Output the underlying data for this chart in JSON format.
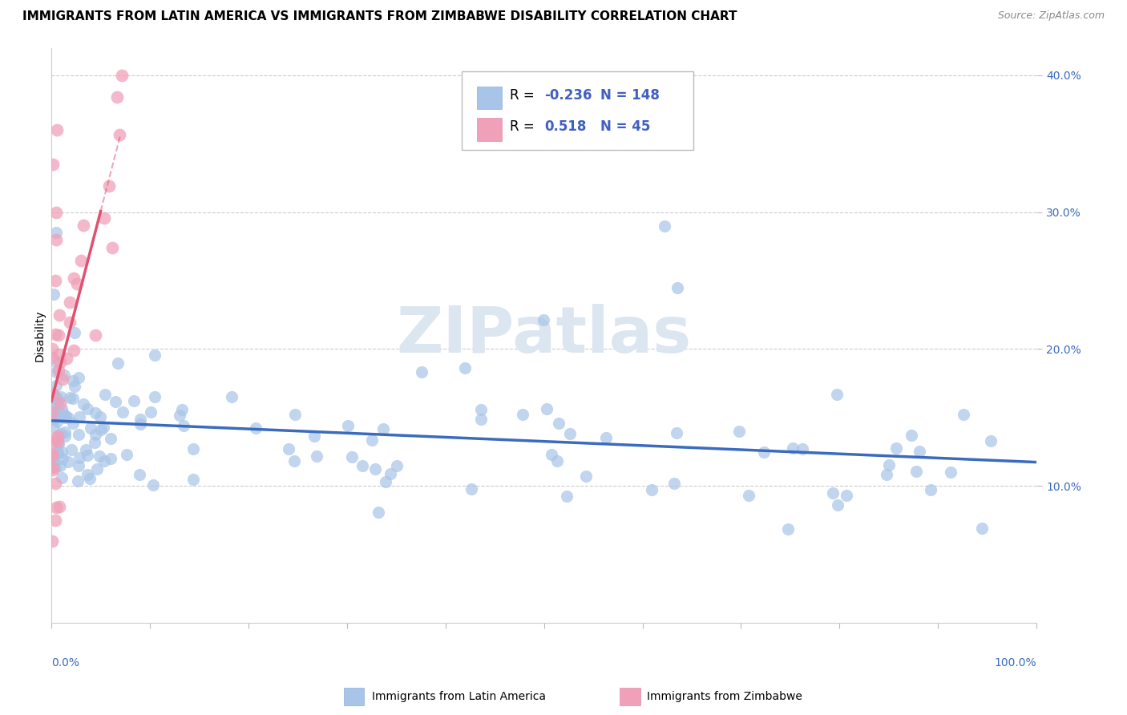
{
  "title": "IMMIGRANTS FROM LATIN AMERICA VS IMMIGRANTS FROM ZIMBABWE DISABILITY CORRELATION CHART",
  "source": "Source: ZipAtlas.com",
  "ylabel": "Disability",
  "series": [
    {
      "name": "Immigrants from Latin America",
      "color": "#a8c4e8",
      "edge_color": "#a8c4e8",
      "line_color": "#3a6bbf",
      "R": -0.236,
      "N": 148
    },
    {
      "name": "Immigrants from Zimbabwe",
      "color": "#f0a0b8",
      "edge_color": "#f0a0b8",
      "line_color": "#e05070",
      "R": 0.518,
      "N": 45
    }
  ],
  "xlim": [
    0,
    100
  ],
  "ylim": [
    0,
    42
  ],
  "ytick_vals": [
    10,
    20,
    30,
    40
  ],
  "yticklabels": [
    "10.0%",
    "20.0%",
    "30.0%",
    "40.0%"
  ],
  "background_color": "#ffffff",
  "watermark_text": "ZIPatlas",
  "watermark_color": "#dce6f0",
  "grid_color": "#cccccc",
  "title_fontsize": 11,
  "source_fontsize": 9,
  "tick_fontsize": 10,
  "legend_R_color": "#4060c0",
  "legend_N_color": "#4060c0"
}
